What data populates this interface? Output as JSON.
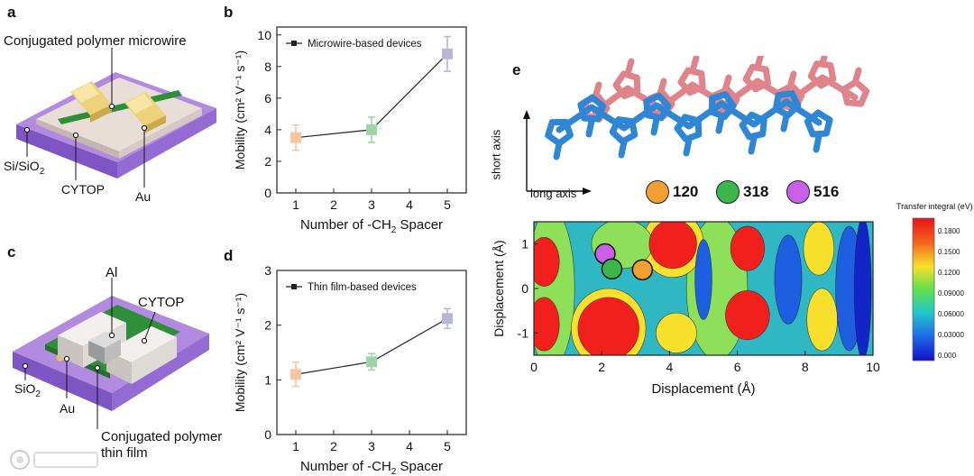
{
  "panels": {
    "a": {
      "letter": "a",
      "labels": {
        "wire": "Conjugated polymer microwire",
        "substrate_main": "Si/SiO",
        "substrate_sub": "2",
        "dielectric": "CYTOP",
        "electrode": "Au"
      }
    },
    "c": {
      "letter": "c",
      "labels": {
        "gate": "Al",
        "dielectric": "CYTOP",
        "substrate_main": "SiO",
        "substrate_sub": "2",
        "electrode": "Au",
        "film_line1": "Conjugated polymer",
        "film_line2": "thin film"
      }
    },
    "b": {
      "letter": "b"
    },
    "d": {
      "letter": "d"
    },
    "e": {
      "letter": "e",
      "short_axis": "short axis",
      "long_axis": "long axis",
      "markers": [
        {
          "label": "120",
          "color": "#f0a030"
        },
        {
          "label": "318",
          "color": "#3cb54a"
        },
        {
          "label": "516",
          "color": "#c860e8"
        }
      ],
      "colorbar_title": "Transfer integral (eV)",
      "colorbar_ticks": [
        "0.1800",
        "0.1500",
        "0.1200",
        "0.09000",
        "0.06000",
        "0.03000",
        "0.000"
      ]
    }
  },
  "chart_data": [
    {
      "type": "line",
      "id": "b",
      "legend": "Microwire-based devices",
      "x": [
        1,
        3,
        5
      ],
      "y": [
        3.5,
        4.0,
        8.8
      ],
      "yerr": [
        0.8,
        0.8,
        1.1
      ],
      "xlabel_main": "Number of -CH",
      "xlabel_sub": "2",
      "xlabel_end": " Spacer",
      "ylabel": "Mobility (cm² V⁻¹ s⁻¹)",
      "xlim": [
        0.5,
        5.5
      ],
      "ylim": [
        0,
        10.5
      ],
      "xticks": [
        "1",
        "2",
        "3",
        "4",
        "5"
      ],
      "yticks": [
        "0",
        "2",
        "4",
        "6",
        "8",
        "10"
      ],
      "point_colors": [
        "#f6c6a4",
        "#9fd4a8",
        "#b6b6d8"
      ]
    },
    {
      "type": "line",
      "id": "d",
      "legend": "Thin film-based devices",
      "x": [
        1,
        3,
        5
      ],
      "y": [
        1.1,
        1.33,
        2.12
      ],
      "yerr": [
        0.22,
        0.15,
        0.18
      ],
      "xlabel_main": "Number of -CH",
      "xlabel_sub": "2",
      "xlabel_end": " Spacer",
      "ylabel": "Mobility (cm² V⁻¹ s⁻¹)",
      "xlim": [
        0.5,
        5.5
      ],
      "ylim": [
        0,
        3
      ],
      "xticks": [
        "1",
        "2",
        "3",
        "4",
        "5"
      ],
      "yticks": [
        "0",
        "1",
        "2",
        "3"
      ],
      "point_colors": [
        "#f6c6a4",
        "#9fd4a8",
        "#b6b6d8"
      ]
    },
    {
      "type": "heatmap",
      "id": "e",
      "xlabel": "Displacement (Å)",
      "ylabel": "Displacement (Å)",
      "xlim": [
        0,
        10
      ],
      "ylim": [
        -1.5,
        1.5
      ],
      "xticks": [
        "0",
        "2",
        "4",
        "6",
        "8",
        "10"
      ],
      "yticks": [
        "1",
        "0",
        "-1"
      ],
      "marker_points": [
        {
          "label": "516",
          "x": 2.1,
          "y": 0.78
        },
        {
          "label": "318",
          "x": 2.3,
          "y": 0.44
        },
        {
          "label": "120",
          "x": 3.2,
          "y": 0.42
        }
      ]
    }
  ]
}
